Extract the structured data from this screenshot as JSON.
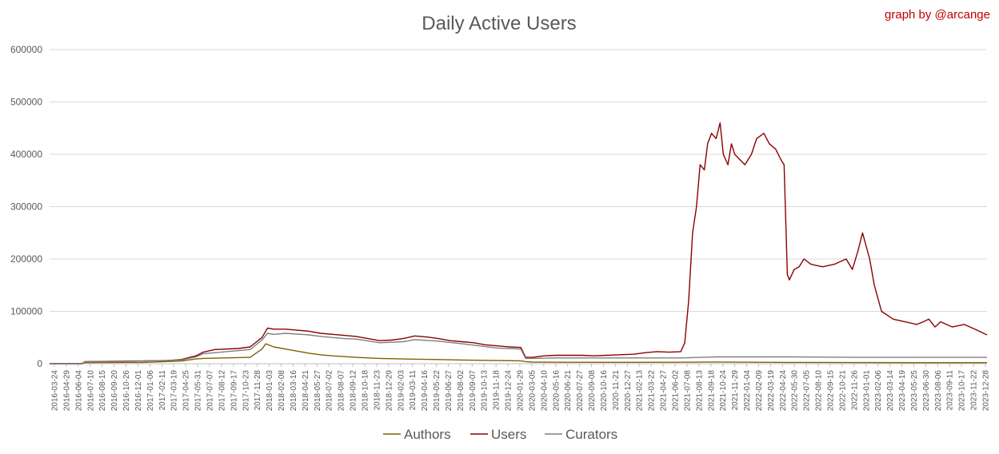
{
  "chart_data": {
    "type": "line",
    "title": "Daily Active Users",
    "credit": "graph by @arcange",
    "xlabel": "",
    "ylabel": "",
    "ylim": [
      0,
      600000
    ],
    "y_ticks": [
      0,
      100000,
      200000,
      300000,
      400000,
      500000,
      600000
    ],
    "y_tick_labels": [
      "0",
      "100000",
      "200000",
      "300000",
      "400000",
      "500000",
      "600000"
    ],
    "x_range": [
      "2016-03-24",
      "2024-01-31"
    ],
    "x_tick_labels": [
      "2016-03-24",
      "2016-04-29",
      "2016-06-04",
      "2016-07-10",
      "2016-08-15",
      "2016-09-20",
      "2016-10-26",
      "2016-12-01",
      "2017-01-06",
      "2017-02-11",
      "2017-03-19",
      "2017-04-25",
      "2017-05-31",
      "2017-07-07",
      "2017-08-12",
      "2017-09-17",
      "2017-10-23",
      "2017-11-28",
      "2018-01-03",
      "2018-02-08",
      "2018-03-16",
      "2018-04-21",
      "2018-05-27",
      "2018-07-02",
      "2018-08-07",
      "2018-09-12",
      "2018-10-18",
      "2018-11-23",
      "2018-12-29",
      "2019-02-03",
      "2019-03-11",
      "2019-04-16",
      "2019-05-22",
      "2019-06-27",
      "2019-08-02",
      "2019-09-07",
      "2019-10-13",
      "2019-11-18",
      "2019-12-24",
      "2020-01-29",
      "2020-03-05",
      "2020-04-10",
      "2020-05-16",
      "2020-06-21",
      "2020-07-27",
      "2020-09-08",
      "2020-10-16",
      "2020-11-21",
      "2020-12-27",
      "2021-02-13",
      "2021-03-22",
      "2021-04-27",
      "2021-06-02",
      "2021-07-08",
      "2021-08-13",
      "2021-09-18",
      "2021-10-24",
      "2021-11-29",
      "2022-01-04",
      "2022-02-09",
      "2022-03-19",
      "2022-04-24",
      "2022-05-30",
      "2022-07-05",
      "2022-08-10",
      "2022-09-15",
      "2022-10-21",
      "2022-11-26",
      "2023-01-01",
      "2023-02-06",
      "2023-03-14",
      "2023-04-19",
      "2023-05-25",
      "2023-06-30",
      "2023-08-06",
      "2023-09-11",
      "2023-10-17",
      "2023-11-22",
      "2023-12-28"
    ],
    "grid": true,
    "legend_position": "bottom",
    "series": [
      {
        "name": "Authors",
        "color": "#7f6000",
        "x": [
          "2016-03-24",
          "2016-07-01",
          "2016-07-10",
          "2017-01-01",
          "2017-05-01",
          "2017-06-15",
          "2017-07-07",
          "2017-11-28",
          "2018-01-03",
          "2018-01-15",
          "2018-02-08",
          "2018-03-16",
          "2018-04-21",
          "2018-05-27",
          "2018-07-02",
          "2018-08-07",
          "2018-10-18",
          "2018-12-29",
          "2019-03-11",
          "2019-06-27",
          "2019-09-07",
          "2019-12-24",
          "2020-03-05",
          "2020-03-20",
          "2020-04-10",
          "2020-06-21",
          "2021-01-01",
          "2021-07-08",
          "2021-10-24",
          "2022-05-30",
          "2023-01-01",
          "2024-01-31"
        ],
        "values": [
          0,
          0,
          2000,
          2500,
          5000,
          9000,
          10000,
          12000,
          28000,
          38000,
          32000,
          28000,
          24000,
          20000,
          17000,
          15000,
          12000,
          10000,
          9000,
          8000,
          7000,
          6000,
          5500,
          4000,
          3000,
          2800,
          2600,
          2800,
          3200,
          2500,
          2200,
          2000
        ]
      },
      {
        "name": "Users",
        "color": "#8b0000",
        "x": [
          "2016-03-24",
          "2016-07-01",
          "2016-07-10",
          "2016-12-01",
          "2017-03-19",
          "2017-05-01",
          "2017-06-15",
          "2017-07-07",
          "2017-08-12",
          "2017-10-23",
          "2017-11-28",
          "2018-01-03",
          "2018-01-20",
          "2018-02-08",
          "2018-03-16",
          "2018-04-21",
          "2018-05-27",
          "2018-07-02",
          "2018-08-07",
          "2018-09-12",
          "2018-10-18",
          "2018-11-23",
          "2018-12-29",
          "2019-02-03",
          "2019-03-11",
          "2019-04-16",
          "2019-05-22",
          "2019-06-27",
          "2019-08-02",
          "2019-09-07",
          "2019-10-13",
          "2019-11-18",
          "2019-12-24",
          "2020-01-29",
          "2020-03-05",
          "2020-03-20",
          "2020-04-10",
          "2020-05-16",
          "2020-06-21",
          "2020-07-27",
          "2020-09-08",
          "2020-10-16",
          "2020-11-21",
          "2020-12-27",
          "2021-02-13",
          "2021-03-22",
          "2021-04-27",
          "2021-06-02",
          "2021-07-08",
          "2021-07-20",
          "2021-08-01",
          "2021-08-13",
          "2021-08-25",
          "2021-09-05",
          "2021-09-18",
          "2021-09-28",
          "2021-10-10",
          "2021-10-24",
          "2021-11-05",
          "2021-11-15",
          "2021-11-29",
          "2021-12-10",
          "2021-12-20",
          "2022-01-04",
          "2022-01-20",
          "2022-02-09",
          "2022-02-25",
          "2022-03-19",
          "2022-04-05",
          "2022-04-24",
          "2022-05-10",
          "2022-05-20",
          "2022-05-30",
          "2022-06-05",
          "2022-06-20",
          "2022-07-05",
          "2022-07-20",
          "2022-08-10",
          "2022-09-15",
          "2022-10-21",
          "2022-11-26",
          "2022-12-15",
          "2023-01-01",
          "2023-01-15",
          "2023-02-06",
          "2023-02-20",
          "2023-03-14",
          "2023-04-19",
          "2023-05-25",
          "2023-06-30",
          "2023-07-20",
          "2023-08-06",
          "2023-08-25",
          "2023-09-11",
          "2023-10-17",
          "2023-11-22",
          "2023-12-28",
          "2024-01-31"
        ],
        "values": [
          0,
          0,
          4000,
          5000,
          6000,
          8000,
          15000,
          22000,
          27000,
          29000,
          32000,
          50000,
          68000,
          66000,
          66000,
          64000,
          62000,
          58000,
          56000,
          54000,
          52000,
          48000,
          44000,
          45000,
          48000,
          53000,
          51000,
          48000,
          44000,
          42000,
          40000,
          36000,
          34000,
          32000,
          31000,
          12000,
          12000,
          15000,
          16000,
          16000,
          16000,
          15000,
          16000,
          17000,
          18000,
          21000,
          23000,
          22000,
          23000,
          40000,
          120000,
          250000,
          300000,
          380000,
          370000,
          420000,
          440000,
          430000,
          460000,
          400000,
          380000,
          420000,
          400000,
          390000,
          380000,
          400000,
          430000,
          440000,
          420000,
          410000,
          390000,
          380000,
          170000,
          160000,
          180000,
          185000,
          200000,
          190000,
          185000,
          190000,
          200000,
          180000,
          215000,
          250000,
          200000,
          150000,
          100000,
          85000,
          80000,
          75000,
          80000,
          85000,
          70000,
          80000,
          70000,
          75000,
          65000,
          55000
        ]
      },
      {
        "name": "Curators",
        "color": "#7f7f7f",
        "x": [
          "2016-03-24",
          "2016-07-01",
          "2016-07-10",
          "2016-12-01",
          "2017-05-01",
          "2017-06-15",
          "2017-07-07",
          "2017-11-28",
          "2018-01-03",
          "2018-01-20",
          "2018-02-08",
          "2018-03-16",
          "2018-05-27",
          "2018-07-02",
          "2018-09-12",
          "2018-10-18",
          "2018-12-29",
          "2019-03-11",
          "2019-04-16",
          "2019-06-27",
          "2019-09-07",
          "2019-12-24",
          "2020-03-05",
          "2020-03-20",
          "2020-04-10",
          "2020-06-21",
          "2021-01-01",
          "2021-07-08",
          "2021-10-24",
          "2022-05-30",
          "2023-01-01",
          "2024-01-31"
        ],
        "values": [
          0,
          0,
          3500,
          4500,
          7000,
          13000,
          19000,
          27000,
          45000,
          58000,
          56000,
          58000,
          55000,
          52000,
          48000,
          47000,
          40000,
          42000,
          46000,
          43000,
          38000,
          30000,
          28000,
          10000,
          10000,
          11000,
          11000,
          11000,
          13000,
          13000,
          12000,
          12000
        ]
      }
    ]
  }
}
